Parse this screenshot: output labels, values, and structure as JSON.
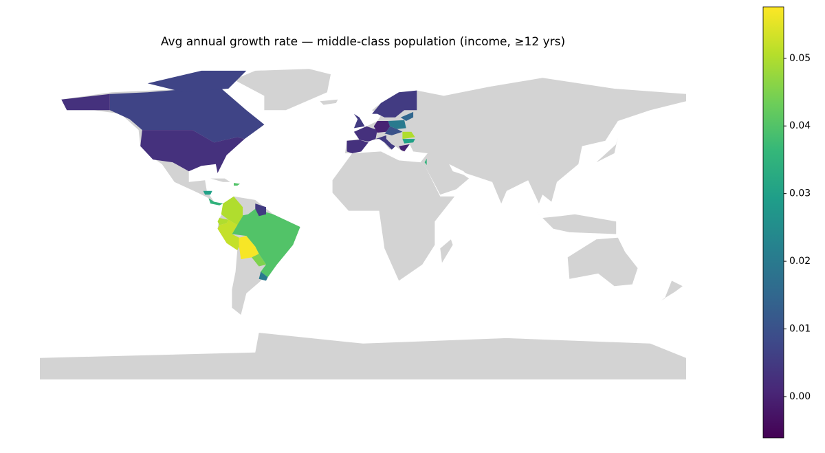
{
  "chart_data": {
    "type": "choropleth",
    "title": "Avg annual growth rate — middle-class population (income, ≥12 yrs)",
    "values": [
      0.007,
      0.007,
      0.003,
      0.003,
      0.04,
      0.05,
      0.05,
      0.052,
      0.057,
      0.045,
      0.02,
      0.005,
      0.035,
      0.03,
      0.04,
      0.003,
      0.003,
      0.0,
      0.02,
      0.005,
      0.005,
      0.05,
      0.03,
      0.0,
      0.015,
      0.01,
      0.035,
      0.005
    ],
    "colorbar": {
      "lim": [
        -0.0061,
        0.0576
      ],
      "ticks": [
        {
          "value": 0,
          "label": "0.00"
        },
        0.01,
        0.02,
        0.03,
        0.04,
        0.05
      ]
    }
  }
}
